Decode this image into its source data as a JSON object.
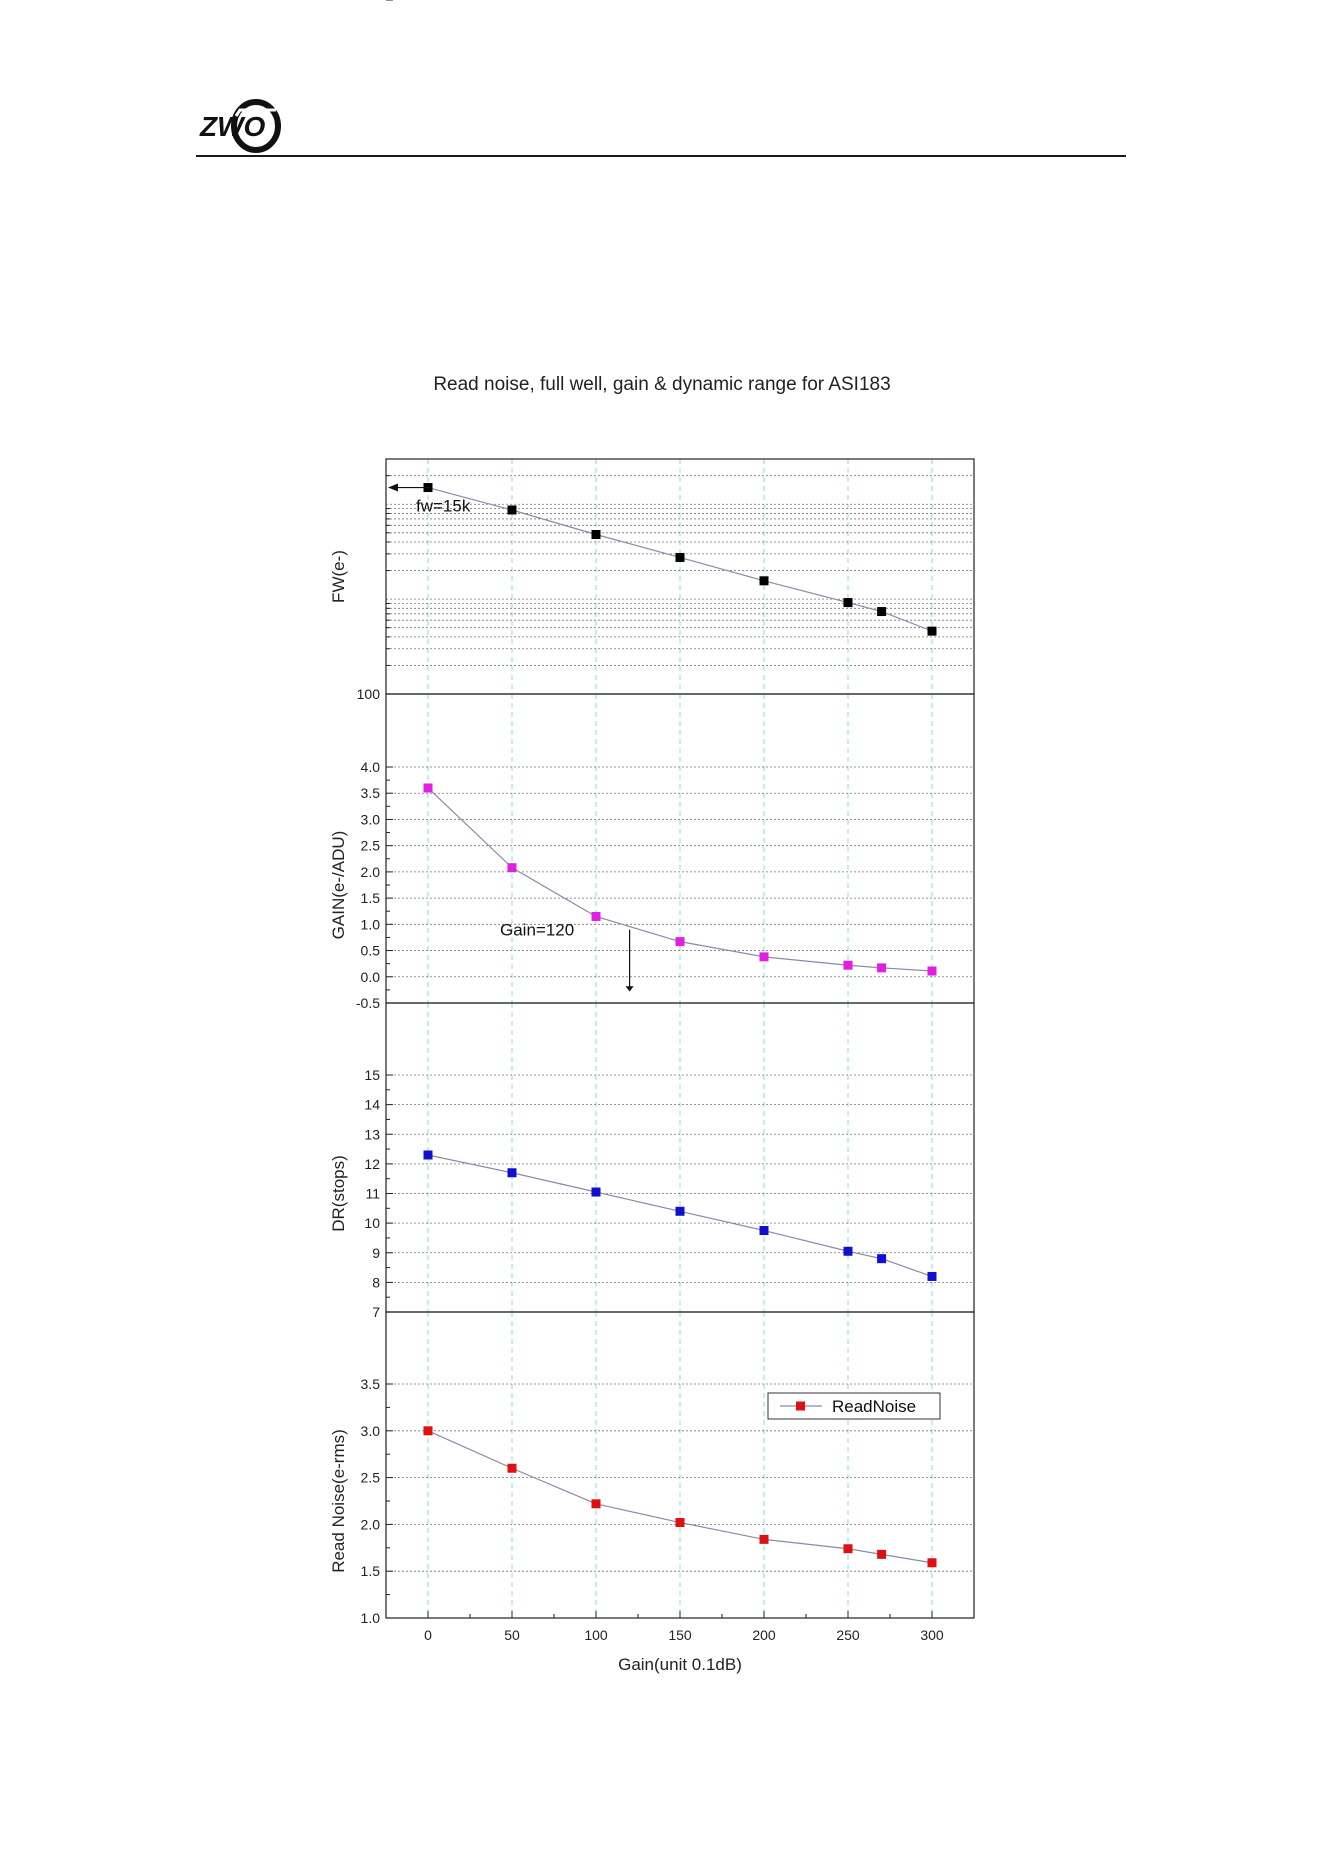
{
  "header": {
    "logo_text": "ZWO"
  },
  "chart_data": {
    "type": "line",
    "title": "Read noise, full well, gain & dynamic range for ASI183",
    "xlabel": "Gain(unit 0.1dB)",
    "x": [
      0,
      50,
      100,
      150,
      200,
      250,
      270,
      300
    ],
    "xlim": [
      -25,
      325
    ],
    "xticks": [
      "0",
      "50",
      "100",
      "150",
      "200",
      "250",
      "300"
    ],
    "grid": true,
    "panels": [
      {
        "id": "fw",
        "ylabel": "FW(e-)",
        "scale": "log",
        "ylim": [
          100,
          30000
        ],
        "yticks": [
          "100",
          "1k",
          "10k"
        ],
        "color": "#000000",
        "series": [
          {
            "values": [
              15000,
              8700,
              4800,
              2750,
              1560,
              920,
              740,
              460
            ]
          }
        ],
        "annotation": {
          "text": "fw=15k",
          "x": 0,
          "y": 15000
        }
      },
      {
        "id": "gain",
        "ylabel": "GAIN(e-/ADU)",
        "scale": "linear",
        "ylim": [
          -0.5,
          4.0
        ],
        "yticks": [
          "-0.5",
          "0.0",
          "0.5",
          "1.0",
          "1.5",
          "2.0",
          "2.5",
          "3.0",
          "3.5",
          "4.0"
        ],
        "color": "#e020e0",
        "series": [
          {
            "values": [
              3.6,
              2.08,
              1.15,
              0.67,
              0.38,
              0.22,
              0.17,
              0.11
            ]
          }
        ],
        "annotation": {
          "text": "Gain=120",
          "x": 120,
          "y": 0.9
        }
      },
      {
        "id": "dr",
        "ylabel": "DR(stops)",
        "scale": "linear",
        "ylim": [
          7,
          15
        ],
        "yticks": [
          "7",
          "8",
          "9",
          "10",
          "11",
          "12",
          "13",
          "14",
          "15"
        ],
        "color": "#1010d0",
        "series": [
          {
            "values": [
              12.3,
              11.7,
              11.05,
              10.4,
              9.75,
              9.05,
              8.8,
              8.2
            ]
          }
        ]
      },
      {
        "id": "rn",
        "ylabel": "Read Noise(e-rms)",
        "scale": "linear",
        "ylim": [
          1.0,
          3.5
        ],
        "yticks": [
          "1.0",
          "1.5",
          "2.0",
          "2.5",
          "3.0",
          "3.5"
        ],
        "color": "#dd1111",
        "series": [
          {
            "name": "ReadNoise",
            "values": [
              3.0,
              2.6,
              2.22,
              2.02,
              1.84,
              1.74,
              1.68,
              1.59
            ]
          }
        ],
        "legend": "top-right"
      }
    ]
  }
}
